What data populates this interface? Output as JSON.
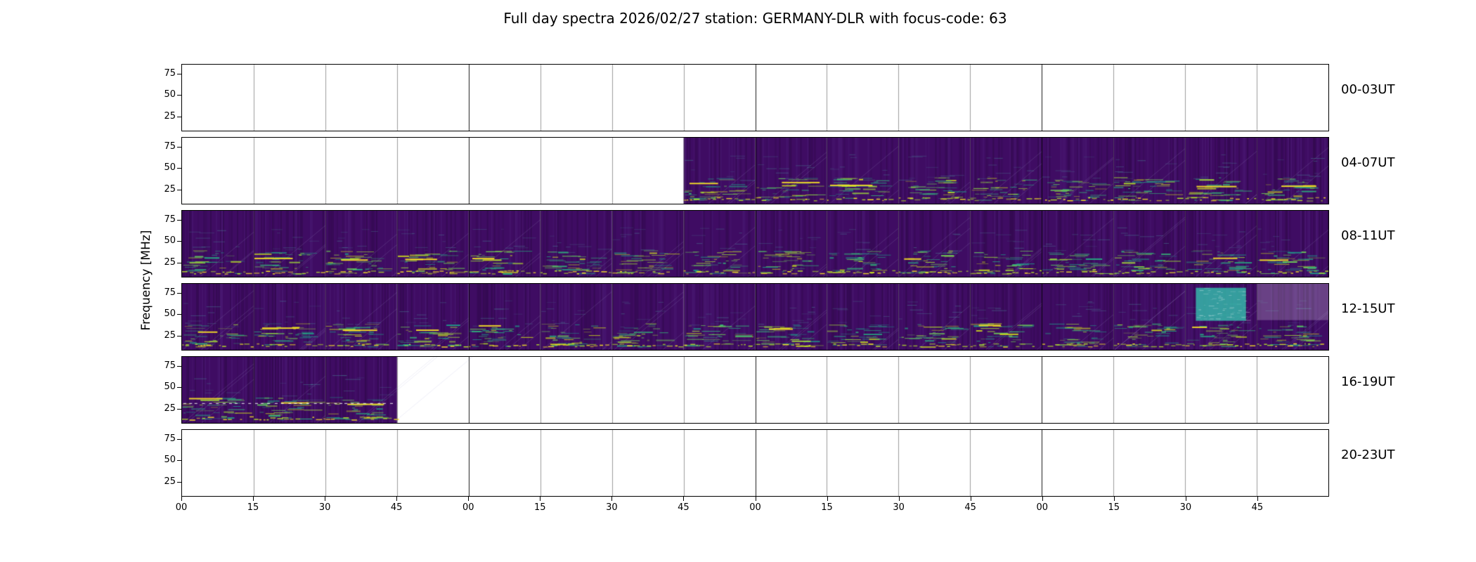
{
  "figure": {
    "title": "Full day spectra 2026/02/27 station: GERMANY-DLR with focus-code: 63",
    "date": "2026/02/27",
    "station": "GERMANY-DLR",
    "focus_code": "63"
  },
  "chart_data": {
    "type": "heatmap",
    "title": "Full day spectra 2026/02/27 station: GERMANY-DLR with focus-code: 63",
    "ylabel": "Frequency [MHz]",
    "colormap": "viridis",
    "legend": "none",
    "y_tick_labels": [
      "75",
      "50",
      "25"
    ],
    "y_tick_values": [
      75,
      50,
      25
    ],
    "freq_axis_range_mhz": [
      8,
      86
    ],
    "x_tick_labels": [
      "00",
      "15",
      "30",
      "45",
      "00",
      "15",
      "30",
      "45",
      "00",
      "15",
      "30",
      "45",
      "00",
      "15",
      "30",
      "45"
    ],
    "segments_per_row": 16,
    "minutes_per_segment": 15,
    "hours_per_row": 4,
    "rows": [
      {
        "label": "00-03UT",
        "data_segments": []
      },
      {
        "label": "04-07UT",
        "data_segments": [
          7,
          8,
          9,
          10,
          11,
          12,
          13,
          14,
          15
        ]
      },
      {
        "label": "08-11UT",
        "data_segments": [
          0,
          1,
          2,
          3,
          4,
          5,
          6,
          7,
          8,
          9,
          10,
          11,
          12,
          13,
          14,
          15
        ]
      },
      {
        "label": "12-15UT",
        "data_segments": [
          0,
          1,
          2,
          3,
          4,
          5,
          6,
          7,
          8,
          9,
          10,
          11,
          12,
          13,
          14,
          15
        ],
        "bright_patch_segment": 14,
        "faded_segment": 15
      },
      {
        "label": "16-19UT",
        "data_segments": [
          0,
          1,
          2
        ],
        "white_dashed_line": true
      },
      {
        "label": "20-23UT",
        "data_segments": []
      }
    ]
  },
  "colors": {
    "background": "#ffffff",
    "axis": "#000000",
    "spec_base": "#3f0c63",
    "spec_base_dark": "#2c0a4e",
    "streaks": [
      "#1f9e89",
      "#26ad81",
      "#35b779",
      "#6ece58",
      "#a0da39",
      "#d2e21b"
    ],
    "lime": "#b5de2b",
    "yellow": "#fde725",
    "patch": "#35b7a9"
  }
}
